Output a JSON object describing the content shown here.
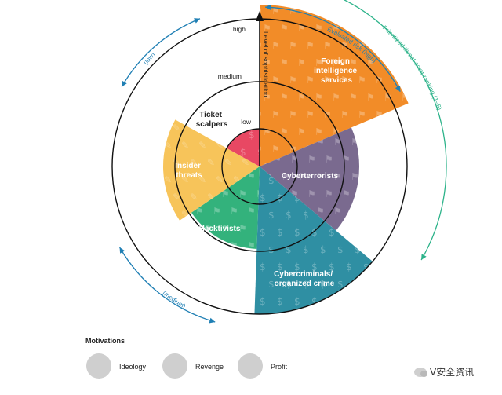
{
  "sectors": [
    {
      "id": "foreign",
      "label_lines": [
        "Foreign",
        "intelligence",
        "services"
      ],
      "color": "#f28c28",
      "motivation": "ideology",
      "sophistication": "high",
      "risk": "high",
      "rank": 1
    },
    {
      "id": "cyberterrorists",
      "label_lines": [
        "Cyberterrorists"
      ],
      "color": "#7a6a8f",
      "motivation": "ideology",
      "sophistication": "medium",
      "risk": "high",
      "rank": 2
    },
    {
      "id": "cybercriminals",
      "label_lines": [
        "Cybercriminals/",
        "organized crime"
      ],
      "color": "#2f8fa3",
      "motivation": "profit",
      "sophistication": "high",
      "risk": "medium",
      "rank": 3
    },
    {
      "id": "hacktivists",
      "label_lines": [
        "Hacktivists"
      ],
      "color": "#33b27c",
      "motivation": "ideology",
      "sophistication": "medium",
      "risk": "medium",
      "rank": 4
    },
    {
      "id": "insider",
      "label_lines": [
        "Insider",
        "threats"
      ],
      "color": "#f7c45a",
      "motivation": "revenge",
      "sophistication": "medium",
      "risk": "low",
      "rank": 5
    },
    {
      "id": "scalpers",
      "label_lines": [
        "Ticket",
        "scalpers"
      ],
      "color": "#e84863",
      "motivation": "profit",
      "sophistication": "low",
      "risk": "low",
      "rank": 6
    }
  ],
  "axis": {
    "title": "Level of sophistication",
    "levels": [
      "low",
      "medium",
      "high"
    ]
  },
  "arcs": {
    "risk_label": "Evaluated risk (high)",
    "low_label": "(low)",
    "medium_label": "(medium)",
    "ranking_label": "Prioritized threat actor ranking (1–6)"
  },
  "colors": {
    "risk_arrows": "#1f7fb4",
    "ranking_arrow": "#2db38a",
    "legend_circle": "#cfcfcf"
  },
  "legend": {
    "title": "Motivations",
    "items": [
      {
        "label": "Ideology",
        "icon": "flag-icon"
      },
      {
        "label": "Revenge",
        "icon": "syringe-icon"
      },
      {
        "label": "Profit",
        "icon": "dollar-icon"
      }
    ]
  },
  "watermark": "V安全资讯"
}
